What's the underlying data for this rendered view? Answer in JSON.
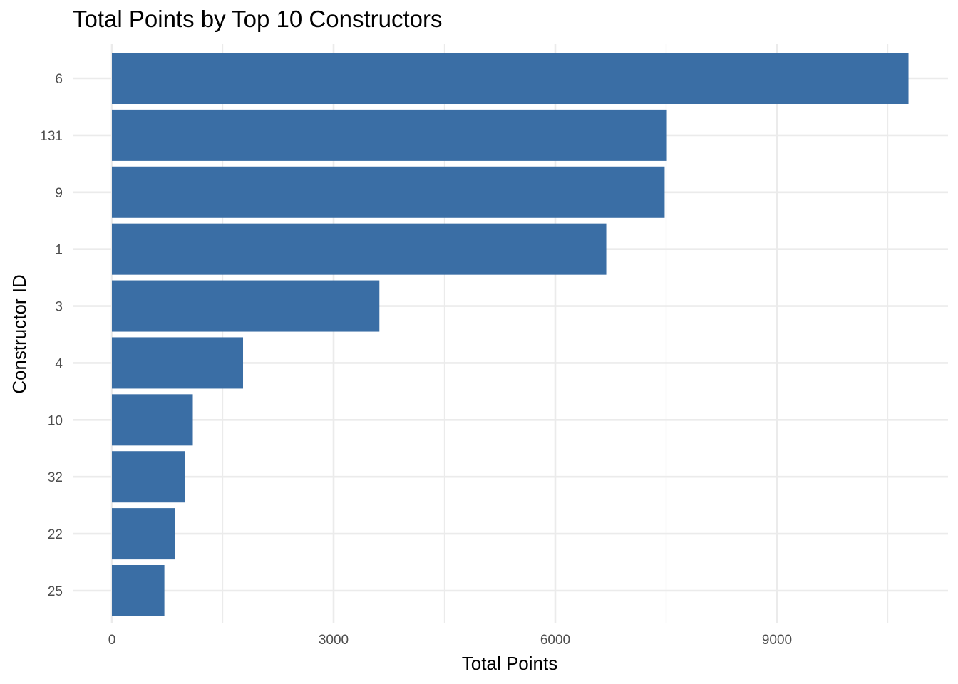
{
  "chart_data": {
    "type": "bar",
    "orientation": "horizontal",
    "title": "Total Points by Top 10 Constructors",
    "xlabel": "Total Points",
    "ylabel": "Constructor ID",
    "categories": [
      "6",
      "131",
      "9",
      "1",
      "3",
      "4",
      "10",
      "32",
      "22",
      "25"
    ],
    "values": [
      10780,
      7510,
      7480,
      6690,
      3620,
      1775,
      1095,
      990,
      855,
      710
    ],
    "xlim": [
      0,
      11000
    ],
    "x_ticks": [
      0,
      3000,
      6000,
      9000
    ],
    "x_tick_labels": [
      "0",
      "3000",
      "6000",
      "9000"
    ],
    "grid": true,
    "legend": "none",
    "bar_color": "#3a6ea5",
    "grid_color": "#ebebeb"
  }
}
